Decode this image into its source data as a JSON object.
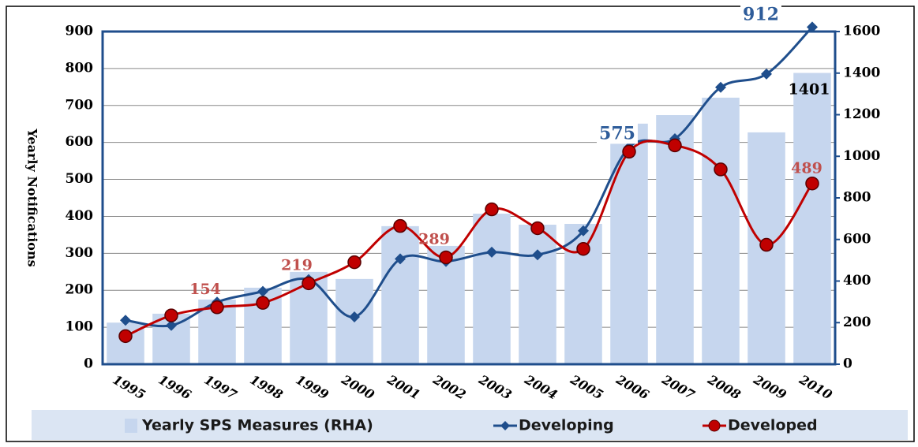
{
  "chart_data": {
    "type": "combo",
    "y_label": "Yearly Notifications",
    "categories": [
      "1995",
      "1996",
      "1997",
      "1998",
      "1999",
      "2000",
      "2001",
      "2002",
      "2003",
      "2004",
      "2005",
      "2006",
      "2007",
      "2008",
      "2009",
      "2010"
    ],
    "series": [
      {
        "name": "Yearly SPS Measures (RHA)",
        "type": "bar",
        "axis": "y2",
        "color": "#c6d6ee",
        "label_color": "#000000",
        "values": [
          200,
          243,
          311,
          368,
          444,
          410,
          664,
          569,
          724,
          671,
          675,
          1157,
          1198,
          1282,
          1115,
          1401
        ],
        "value_labels": [
          null,
          null,
          null,
          null,
          null,
          null,
          null,
          null,
          null,
          null,
          null,
          null,
          null,
          null,
          null,
          "1401"
        ]
      },
      {
        "name": "Developing",
        "type": "line",
        "marker": "diamond",
        "color": "#1f4e8c",
        "label_color": "#2e5c9a",
        "values": [
          119,
          105,
          168,
          197,
          229,
          128,
          285,
          278,
          303,
          296,
          361,
          587,
          610,
          749,
          785,
          912
        ],
        "value_labels": [
          null,
          null,
          null,
          null,
          null,
          null,
          null,
          null,
          null,
          null,
          null,
          null,
          null,
          null,
          null,
          "912"
        ]
      },
      {
        "name": "Developed",
        "type": "line",
        "marker": "circle",
        "color": "#c00000",
        "label_color": "#c0504d",
        "values": [
          76,
          132,
          154,
          166,
          219,
          276,
          374,
          289,
          419,
          368,
          312,
          575,
          592,
          527,
          323,
          489
        ],
        "value_labels": [
          null,
          null,
          "154",
          null,
          "219",
          null,
          null,
          "289",
          null,
          null,
          null,
          "575",
          null,
          null,
          null,
          "489"
        ]
      }
    ],
    "ylim": [
      0,
      900
    ],
    "yticks": [
      0,
      100,
      200,
      300,
      400,
      500,
      600,
      700,
      800,
      900
    ],
    "y2lim": [
      0,
      1600
    ],
    "y2ticks": [
      0,
      200,
      400,
      600,
      800,
      1000,
      1200,
      1400,
      1600
    ],
    "grid": true
  }
}
